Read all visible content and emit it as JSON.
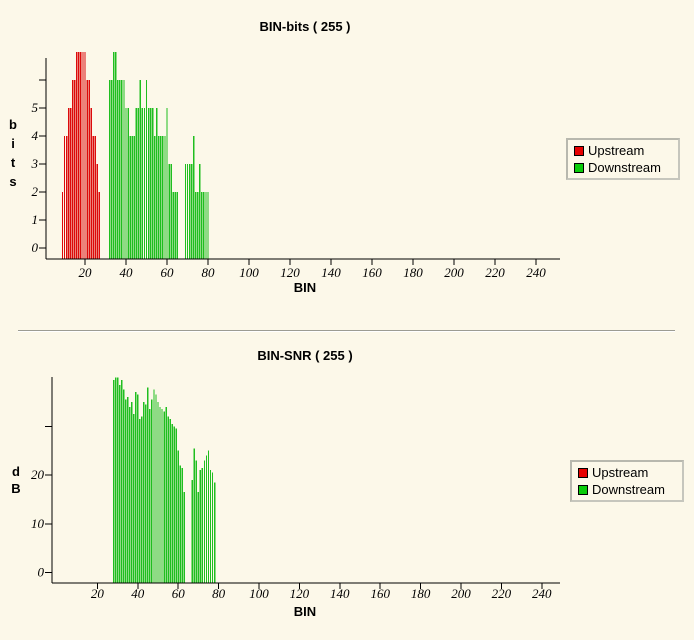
{
  "page": {
    "background": "#FCF8E9",
    "axis_color": "#000000"
  },
  "chart_data": [
    {
      "type": "bar",
      "title": "BIN-bits ( 255 )",
      "xlabel": "BIN",
      "ylabel": "bits",
      "ylabel_stacked": [
        "b",
        "i",
        "t",
        "s"
      ],
      "xlim": [
        0,
        252
      ],
      "ylim": [
        0,
        7
      ],
      "grid": false,
      "legend_position": "right",
      "x_ticks": [
        20,
        40,
        60,
        80,
        100,
        120,
        140,
        160,
        180,
        200,
        220,
        240
      ],
      "y_ticks": [
        0,
        1,
        2,
        3,
        4,
        5
      ],
      "y_ticks_unlabeled": [
        6
      ],
      "legend": [
        {
          "label": "Upstream",
          "color": "#E60000"
        },
        {
          "label": "Downstream",
          "color": "#0ACC0A"
        }
      ],
      "series": [
        {
          "name": "Upstream",
          "color": "#DC0A0A",
          "points": [
            [
              9,
              2
            ],
            [
              10,
              4
            ],
            [
              11,
              4
            ],
            [
              12,
              5
            ],
            [
              13,
              5
            ],
            [
              14,
              6
            ],
            [
              15,
              6
            ],
            [
              16,
              7
            ],
            [
              17,
              7
            ],
            [
              18,
              7
            ],
            [
              19,
              7
            ],
            [
              20,
              7
            ],
            [
              21,
              6
            ],
            [
              22,
              6
            ],
            [
              23,
              5
            ],
            [
              24,
              4
            ],
            [
              25,
              4
            ],
            [
              26,
              3
            ],
            [
              27,
              2
            ]
          ]
        },
        {
          "name": "Downstream",
          "color": "#1FBE1F",
          "points": [
            [
              32,
              6
            ],
            [
              33,
              6
            ],
            [
              34,
              7
            ],
            [
              35,
              7
            ],
            [
              36,
              6
            ],
            [
              37,
              6
            ],
            [
              38,
              6
            ],
            [
              39,
              6
            ],
            [
              40,
              5
            ],
            [
              41,
              5
            ],
            [
              42,
              4
            ],
            [
              43,
              4
            ],
            [
              44,
              4
            ],
            [
              45,
              5
            ],
            [
              46,
              5
            ],
            [
              47,
              6
            ],
            [
              48,
              5
            ],
            [
              49,
              5
            ],
            [
              50,
              6
            ],
            [
              51,
              5
            ],
            [
              52,
              5
            ],
            [
              53,
              5
            ],
            [
              54,
              4
            ],
            [
              55,
              5
            ],
            [
              56,
              4
            ],
            [
              57,
              4
            ],
            [
              58,
              4
            ],
            [
              59,
              4
            ],
            [
              60,
              5
            ],
            [
              61,
              3
            ],
            [
              62,
              3
            ],
            [
              63,
              2
            ],
            [
              64,
              2
            ],
            [
              65,
              2
            ],
            [
              69,
              3
            ],
            [
              70,
              3
            ],
            [
              71,
              3
            ],
            [
              72,
              3
            ],
            [
              73,
              4
            ],
            [
              74,
              2
            ],
            [
              75,
              2
            ],
            [
              76,
              3
            ],
            [
              77,
              2
            ],
            [
              78,
              2
            ],
            [
              79,
              2
            ],
            [
              80,
              2
            ]
          ]
        }
      ]
    },
    {
      "type": "bar",
      "title": "BIN-SNR ( 255 )",
      "xlabel": "BIN",
      "ylabel": "dB",
      "ylabel_stacked": [
        "d",
        "B"
      ],
      "xlim": [
        0,
        252
      ],
      "ylim": [
        0,
        41
      ],
      "grid": false,
      "legend_position": "right",
      "x_ticks": [
        20,
        40,
        60,
        80,
        100,
        120,
        140,
        160,
        180,
        200,
        220,
        240
      ],
      "y_ticks": [
        0,
        10,
        20
      ],
      "y_ticks_unlabeled": [
        30
      ],
      "legend": [
        {
          "label": "Upstream",
          "color": "#E60000"
        },
        {
          "label": "Downstream",
          "color": "#0ACC0A"
        }
      ],
      "series": [
        {
          "name": "Upstream",
          "color": "#DC0A0A",
          "points": []
        },
        {
          "name": "Downstream",
          "color": "#1FBE1F",
          "points": [
            [
              28,
              39.5
            ],
            [
              29,
              40
            ],
            [
              30,
              40
            ],
            [
              31,
              38.5
            ],
            [
              32,
              39.5
            ],
            [
              33,
              37.5
            ],
            [
              34,
              35.5
            ],
            [
              35,
              36
            ],
            [
              36,
              34
            ],
            [
              37,
              35
            ],
            [
              38,
              32.5
            ],
            [
              39,
              37
            ],
            [
              40,
              36.5
            ],
            [
              41,
              31.5
            ],
            [
              42,
              32
            ],
            [
              43,
              35
            ],
            [
              44,
              34.5
            ],
            [
              45,
              38
            ],
            [
              46,
              33.5
            ],
            [
              47,
              35.5
            ],
            [
              48,
              37.5
            ],
            [
              49,
              36.5
            ],
            [
              50,
              35
            ],
            [
              51,
              34
            ],
            [
              52,
              33.5
            ],
            [
              53,
              33
            ],
            [
              54,
              34
            ],
            [
              55,
              32
            ],
            [
              56,
              31.5
            ],
            [
              57,
              30.5
            ],
            [
              58,
              30
            ],
            [
              59,
              29.5
            ],
            [
              60,
              25
            ],
            [
              61,
              22
            ],
            [
              62,
              21.5
            ],
            [
              63,
              16.5
            ],
            [
              67,
              19
            ],
            [
              68,
              25.5
            ],
            [
              69,
              23
            ],
            [
              70,
              16.5
            ],
            [
              71,
              21
            ],
            [
              72,
              21.5
            ],
            [
              73,
              23
            ],
            [
              74,
              24
            ],
            [
              75,
              25
            ],
            [
              76,
              21
            ],
            [
              77,
              20.5
            ],
            [
              78,
              18.5
            ]
          ]
        }
      ]
    }
  ]
}
